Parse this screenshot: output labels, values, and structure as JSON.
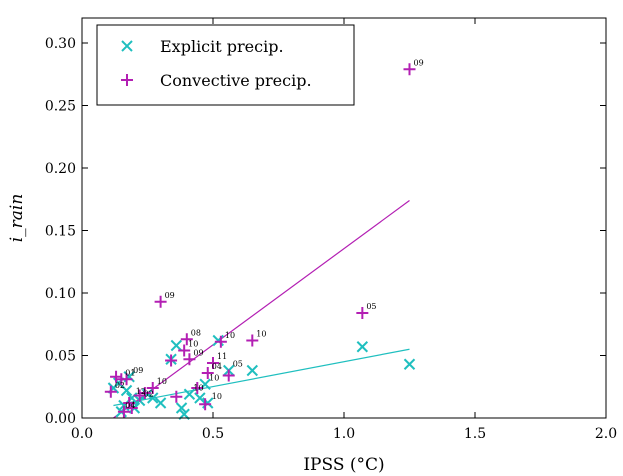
{
  "chart_data": {
    "type": "scatter",
    "xlabel": "IPSS (°C)",
    "ylabel": "i_rain",
    "xlim": [
      0.0,
      2.0
    ],
    "ylim": [
      0.0,
      0.32
    ],
    "x_ticks": [
      "0.0",
      "0.5",
      "1.0",
      "1.5",
      "2.0"
    ],
    "y_ticks": [
      "0.00",
      "0.05",
      "0.10",
      "0.15",
      "0.20",
      "0.25",
      "0.30"
    ],
    "x_tick_values": [
      0.0,
      0.5,
      1.0,
      1.5,
      2.0
    ],
    "y_tick_values": [
      0.0,
      0.05,
      0.1,
      0.15,
      0.2,
      0.25,
      0.3
    ],
    "grid": false,
    "legend_position": "top-left",
    "series": [
      {
        "name": "Explicit precip.",
        "marker": "x",
        "color": "#1fbfbf",
        "points": [
          {
            "x": 0.12,
            "y": 0.024,
            "label": ""
          },
          {
            "x": 0.14,
            "y": 0.028,
            "label": ""
          },
          {
            "x": 0.15,
            "y": 0.005,
            "label": "04"
          },
          {
            "x": 0.16,
            "y": 0.01,
            "label": ""
          },
          {
            "x": 0.17,
            "y": 0.022,
            "label": ""
          },
          {
            "x": 0.18,
            "y": 0.033,
            "label": "09"
          },
          {
            "x": 0.19,
            "y": 0.016,
            "label": "12"
          },
          {
            "x": 0.2,
            "y": 0.008,
            "label": ""
          },
          {
            "x": 0.22,
            "y": 0.014,
            "label": "02"
          },
          {
            "x": 0.25,
            "y": 0.019,
            "label": ""
          },
          {
            "x": 0.27,
            "y": 0.016,
            "label": ""
          },
          {
            "x": 0.3,
            "y": 0.012,
            "label": ""
          },
          {
            "x": 0.34,
            "y": 0.047,
            "label": ""
          },
          {
            "x": 0.36,
            "y": 0.058,
            "label": ""
          },
          {
            "x": 0.38,
            "y": 0.008,
            "label": ""
          },
          {
            "x": 0.39,
            "y": 0.003,
            "label": ""
          },
          {
            "x": 0.41,
            "y": 0.019,
            "label": "10"
          },
          {
            "x": 0.45,
            "y": 0.016,
            "label": ""
          },
          {
            "x": 0.47,
            "y": 0.027,
            "label": "10"
          },
          {
            "x": 0.48,
            "y": 0.012,
            "label": "10"
          },
          {
            "x": 0.52,
            "y": 0.062,
            "label": ""
          },
          {
            "x": 0.56,
            "y": 0.038,
            "label": "05"
          },
          {
            "x": 0.65,
            "y": 0.038,
            "label": ""
          },
          {
            "x": 1.07,
            "y": 0.057,
            "label": ""
          },
          {
            "x": 1.25,
            "y": 0.043,
            "label": ""
          }
        ],
        "fit_line": {
          "x": [
            0.12,
            1.25
          ],
          "y": [
            0.01,
            0.055
          ]
        }
      },
      {
        "name": "Convective precip.",
        "marker": "+",
        "color": "#b31fb3",
        "points": [
          {
            "x": 0.11,
            "y": 0.021,
            "label": "02"
          },
          {
            "x": 0.13,
            "y": 0.033,
            "label": ""
          },
          {
            "x": 0.15,
            "y": 0.031,
            "label": "01"
          },
          {
            "x": 0.16,
            "y": 0.005,
            "label": ""
          },
          {
            "x": 0.17,
            "y": 0.031,
            "label": ""
          },
          {
            "x": 0.18,
            "y": 0.012,
            "label": ""
          },
          {
            "x": 0.19,
            "y": 0.008,
            "label": ""
          },
          {
            "x": 0.22,
            "y": 0.018,
            "label": ""
          },
          {
            "x": 0.24,
            "y": 0.02,
            "label": ""
          },
          {
            "x": 0.27,
            "y": 0.024,
            "label": "10"
          },
          {
            "x": 0.3,
            "y": 0.093,
            "label": "09"
          },
          {
            "x": 0.34,
            "y": 0.046,
            "label": ""
          },
          {
            "x": 0.36,
            "y": 0.017,
            "label": ""
          },
          {
            "x": 0.39,
            "y": 0.054,
            "label": "10"
          },
          {
            "x": 0.4,
            "y": 0.063,
            "label": "08"
          },
          {
            "x": 0.41,
            "y": 0.047,
            "label": "09"
          },
          {
            "x": 0.44,
            "y": 0.024,
            "label": ""
          },
          {
            "x": 0.47,
            "y": 0.011,
            "label": ""
          },
          {
            "x": 0.48,
            "y": 0.036,
            "label": "04"
          },
          {
            "x": 0.5,
            "y": 0.044,
            "label": "11"
          },
          {
            "x": 0.53,
            "y": 0.061,
            "label": "10"
          },
          {
            "x": 0.56,
            "y": 0.034,
            "label": ""
          },
          {
            "x": 0.65,
            "y": 0.062,
            "label": "10"
          },
          {
            "x": 1.07,
            "y": 0.084,
            "label": "05"
          },
          {
            "x": 1.25,
            "y": 0.279,
            "label": "09"
          }
        ],
        "fit_line": {
          "x": [
            0.12,
            1.25
          ],
          "y": [
            0.0,
            0.174
          ]
        }
      }
    ]
  }
}
